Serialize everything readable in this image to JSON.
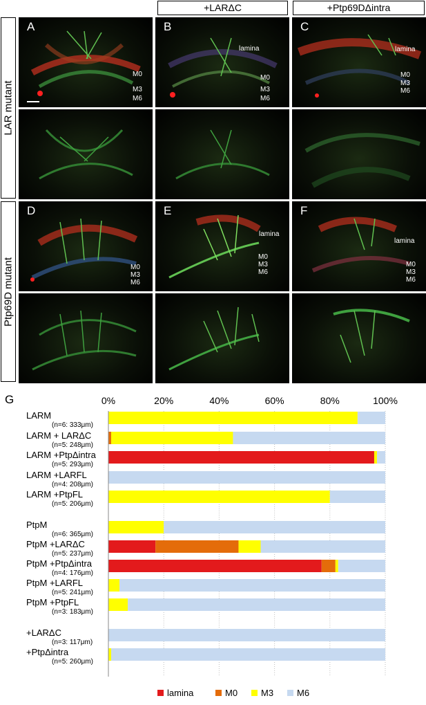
{
  "figure": {
    "col_headers": [
      "+LARΔC",
      "+Ptp69DΔintra"
    ],
    "row_headers": [
      "LAR mutant",
      "Ptp69D mutant"
    ],
    "panel_letters": [
      "A",
      "B",
      "C",
      "D",
      "E",
      "F"
    ],
    "layer_labels": [
      "M0",
      "M3",
      "M6"
    ],
    "lamina_label": "lamina",
    "section_label": "G"
  },
  "chart_data": {
    "type": "bar",
    "stacked": true,
    "orientation": "horizontal",
    "xlim": [
      0,
      100
    ],
    "x_ticks": [
      "0%",
      "20%",
      "40%",
      "60%",
      "80%",
      "100%"
    ],
    "categories": [
      {
        "label": "LARM",
        "sub": "(n=6: 333μm)"
      },
      {
        "label": "LARM + LARΔC",
        "sub": "(n=5: 248μm)"
      },
      {
        "label": "LARM +PtpΔintra",
        "sub": "(n=5: 293μm)"
      },
      {
        "label": "LARM +LARFL",
        "sub": "(n=4: 208μm)"
      },
      {
        "label": "LARM +PtpFL",
        "sub": "(n=5: 206μm)"
      },
      {
        "label": "PtpM",
        "sub": "(n=6: 365μm)"
      },
      {
        "label": "PtpM +LARΔC",
        "sub": "(n=5: 237μm)"
      },
      {
        "label": "PtpM +PtpΔintra",
        "sub": "(n=4: 176μm)"
      },
      {
        "label": "PtpM +LARFL",
        "sub": "(n=5: 241μm)"
      },
      {
        "label": "PtpM +PtpFL",
        "sub": "(n=3: 183μm)"
      },
      {
        "label": "+LARΔC",
        "sub": "(n=3: 117μm)"
      },
      {
        "label": "+PtpΔintra",
        "sub": "(n=5: 260μm)"
      }
    ],
    "series": [
      {
        "name": "lamina",
        "color": "#e31a1c",
        "values": [
          0,
          0,
          96,
          0,
          0,
          0,
          17,
          77,
          0,
          0,
          0,
          0
        ]
      },
      {
        "name": "M0",
        "color": "#e46c0a",
        "values": [
          0,
          1,
          0,
          0,
          0,
          0,
          30,
          5,
          0,
          0,
          0,
          0
        ]
      },
      {
        "name": "M3",
        "color": "#ffff00",
        "values": [
          90,
          44,
          1,
          0,
          80,
          20,
          8,
          1,
          4,
          7,
          0,
          1
        ]
      },
      {
        "name": "M6",
        "color": "#c6d9f0",
        "values": [
          10,
          55,
          3,
          100,
          20,
          80,
          45,
          17,
          96,
          93,
          100,
          99
        ]
      }
    ]
  }
}
